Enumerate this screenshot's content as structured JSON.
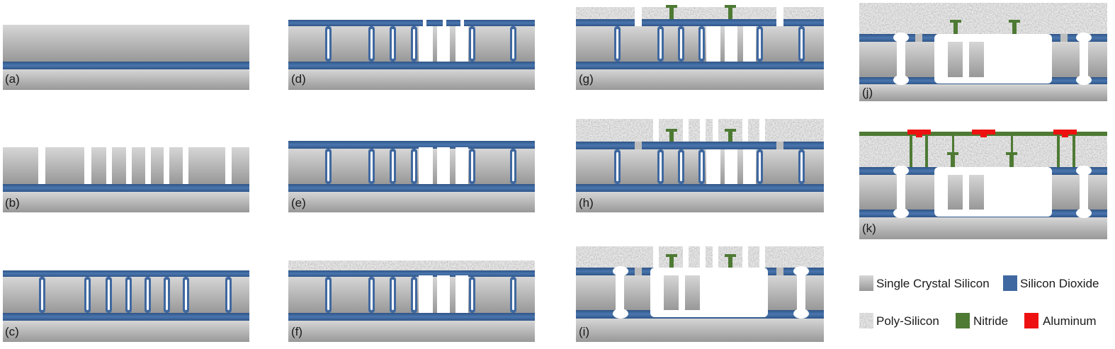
{
  "panels": [
    {
      "id": "a",
      "label": "(a)"
    },
    {
      "id": "b",
      "label": "(b)"
    },
    {
      "id": "c",
      "label": "(c)"
    },
    {
      "id": "d",
      "label": "(d)"
    },
    {
      "id": "e",
      "label": "(e)"
    },
    {
      "id": "f",
      "label": "(f)"
    },
    {
      "id": "g",
      "label": "(g)"
    },
    {
      "id": "h",
      "label": "(h)"
    },
    {
      "id": "i",
      "label": "(i)"
    },
    {
      "id": "j",
      "label": "(j)"
    },
    {
      "id": "k",
      "label": "(k)"
    }
  ],
  "legend": {
    "single_crystal_silicon": "Single Crystal Silicon",
    "silicon_dioxide": "Silicon Dioxide",
    "poly_silicon": "Poly-Silicon",
    "nitride": "Nitride",
    "aluminum": "Aluminum"
  },
  "colors": {
    "oxide": "#3f68a0",
    "nitride": "#4e7a34",
    "aluminum": "#ee1111",
    "silicon_light": "#d4d4d4",
    "silicon_dark": "#9a9a9a",
    "background": "#ffffff"
  }
}
